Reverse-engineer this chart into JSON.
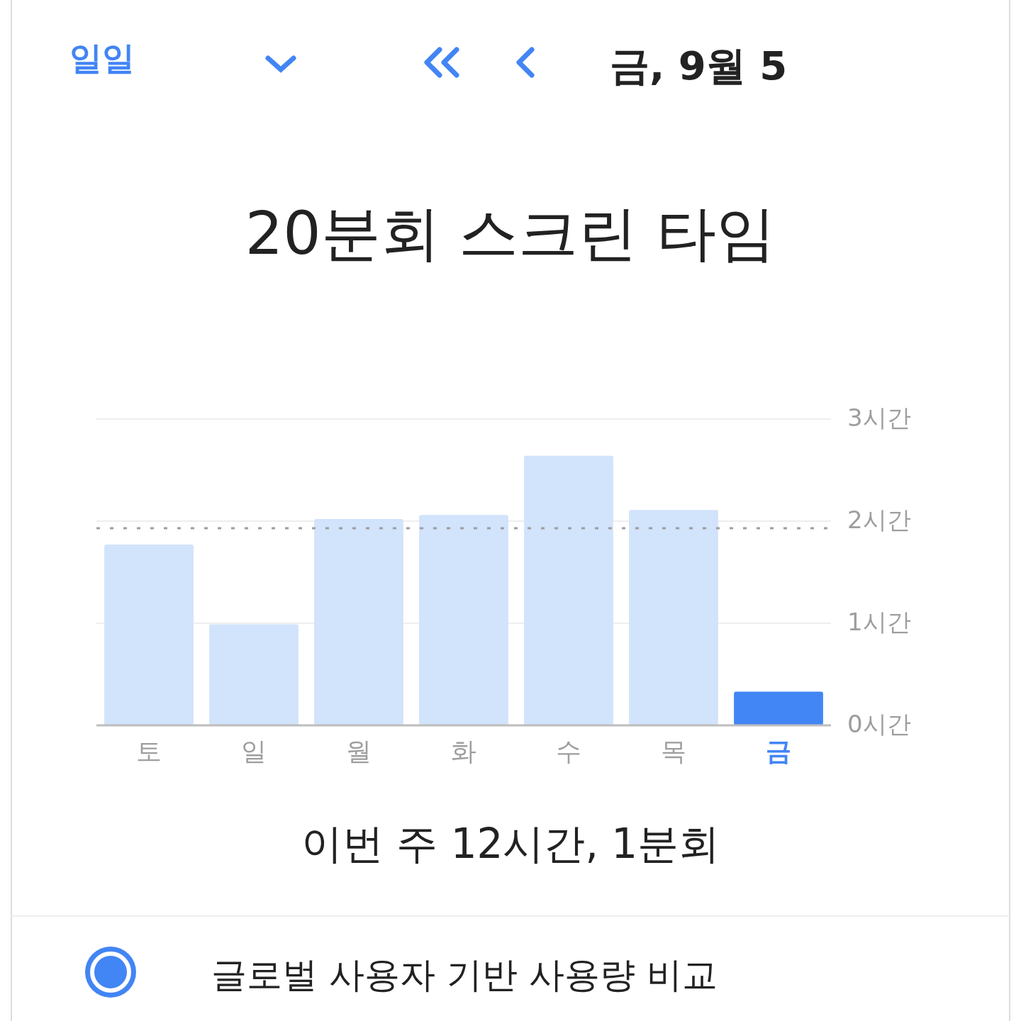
{
  "chart_data": {
    "type": "bar",
    "title": "20분회 스크린 타임",
    "categories": [
      "토",
      "일",
      "월",
      "화",
      "수",
      "목",
      "금"
    ],
    "values": [
      1.77,
      0.99,
      2.02,
      2.06,
      2.64,
      2.11,
      0.33
    ],
    "colors": [
      "#d2e3fc",
      "#d2e3fc",
      "#d2e3fc",
      "#d2e3fc",
      "#d2e3fc",
      "#d2e3fc",
      "#4285f4"
    ],
    "ylim": [
      0,
      3
    ],
    "yticks": [
      {
        "value": 0,
        "label": "0시간"
      },
      {
        "value": 1,
        "label": "1시간"
      },
      {
        "value": 2,
        "label": "2시간"
      },
      {
        "value": 3,
        "label": "3시간"
      }
    ],
    "grid": "y",
    "ref_lines": [
      {
        "axis": "y",
        "value": 1.93,
        "color": "#9e9e9e",
        "line_style": "dotted"
      }
    ],
    "annotations": [
      "일일",
      "금, 9월 5",
      "이번 주 12시간, 1분회",
      "글로벌 사용자 기반 사용량 비교"
    ]
  }
}
